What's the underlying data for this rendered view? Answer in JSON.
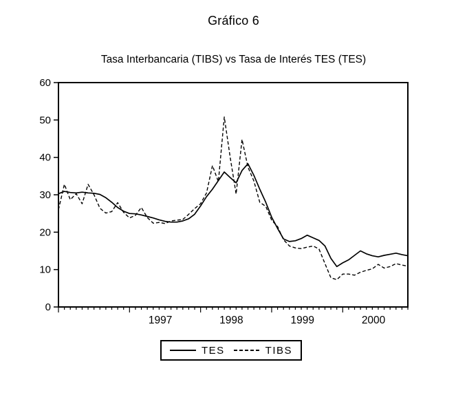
{
  "page": {
    "title": "Gráfico 6",
    "subtitle": "Tasa Interbancaria (TIBS) vs Tasa de Interés TES (TES)"
  },
  "legend": {
    "entries": [
      {
        "label": "TES",
        "style": "solid"
      },
      {
        "label": "TIBS",
        "style": "dashed"
      }
    ]
  },
  "colors": {
    "ink": "#000000",
    "background": "#ffffff"
  },
  "chart_data": {
    "type": "line",
    "title": "Gráfico 6",
    "subtitle": "Tasa Interbancaria (TIBS) vs Tasa de Interés TES (TES)",
    "x_unit": "monthly observations, Jan 1996 - Dec 2000",
    "ylim": [
      0,
      60
    ],
    "yticks": [
      0,
      10,
      20,
      30,
      40,
      50,
      60
    ],
    "grid": false,
    "legend_position": "bottom-center",
    "x_tick_labels": [
      {
        "label": "1997",
        "month": 17.2
      },
      {
        "label": "1998",
        "month": 29.2
      },
      {
        "label": "1999",
        "month": 41.2
      },
      {
        "label": "2000",
        "month": 53.2
      }
    ],
    "major_tick_months": [
      0,
      12,
      24,
      36,
      48
    ],
    "minor_ticks_per_year": 12,
    "series": [
      {
        "name": "TES",
        "style": "solid",
        "values": [
          30.3,
          30.9,
          30.6,
          30.5,
          30.7,
          30.5,
          30.4,
          30.1,
          29.2,
          28.0,
          26.6,
          25.6,
          25.0,
          24.9,
          24.6,
          24.2,
          23.8,
          23.3,
          22.9,
          22.7,
          22.7,
          23.0,
          23.6,
          24.8,
          27.0,
          29.5,
          31.5,
          33.8,
          36.1,
          34.6,
          33.2,
          36.5,
          38.3,
          35.2,
          31.5,
          28.0,
          24.0,
          21.0,
          18.2,
          17.5,
          17.7,
          18.3,
          19.2,
          18.5,
          17.8,
          16.3,
          13.0,
          10.8,
          11.8,
          12.6,
          13.8,
          15.0,
          14.2,
          13.7,
          13.4,
          13.8,
          14.1,
          14.4,
          14.0,
          13.7
        ]
      },
      {
        "name": "TIBS",
        "style": "dashed",
        "values": [
          26.0,
          32.8,
          28.7,
          30.3,
          27.6,
          32.8,
          30.0,
          26.4,
          25.1,
          25.5,
          27.9,
          25.3,
          23.8,
          24.5,
          26.6,
          23.9,
          22.4,
          22.6,
          22.3,
          23.0,
          23.2,
          23.4,
          24.8,
          26.3,
          27.6,
          30.5,
          37.8,
          33.5,
          50.8,
          40.0,
          30.2,
          44.8,
          37.4,
          33.7,
          28.0,
          26.9,
          23.2,
          21.5,
          18.0,
          16.3,
          15.8,
          15.6,
          16.0,
          16.3,
          15.5,
          11.6,
          7.8,
          7.3,
          8.8,
          8.8,
          8.5,
          9.3,
          9.8,
          10.2,
          11.4,
          10.4,
          10.8,
          11.6,
          11.2,
          10.9
        ]
      }
    ]
  }
}
